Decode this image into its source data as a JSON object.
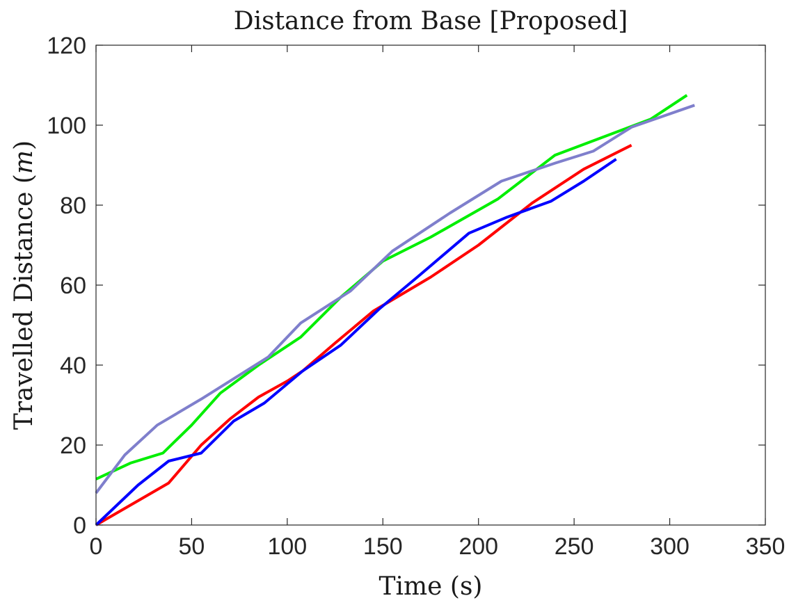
{
  "chart_data": {
    "type": "line",
    "title": "Distance from Base [Proposed]",
    "xlabel": "Time (s)",
    "ylabel_prefix": "Travelled Distance (",
    "ylabel_var": "m",
    "ylabel_suffix": ")",
    "xlim": [
      0,
      350
    ],
    "ylim": [
      0,
      120
    ],
    "xticks": [
      0,
      50,
      100,
      150,
      200,
      250,
      300,
      350
    ],
    "yticks": [
      0,
      20,
      40,
      60,
      80,
      100,
      120
    ],
    "grid": false,
    "legend": "none",
    "series": [
      {
        "color": "#ff0000",
        "points": [
          [
            0,
            0
          ],
          [
            38,
            10.5
          ],
          [
            55,
            20
          ],
          [
            70,
            26.5
          ],
          [
            85,
            32
          ],
          [
            100,
            36
          ],
          [
            108,
            38.5
          ],
          [
            125,
            45.5
          ],
          [
            145,
            53.5
          ],
          [
            175,
            62
          ],
          [
            200,
            70
          ],
          [
            228,
            80.5
          ],
          [
            255,
            89
          ],
          [
            280,
            95
          ]
        ]
      },
      {
        "color": "#0000ff",
        "points": [
          [
            0,
            0
          ],
          [
            22,
            10
          ],
          [
            38,
            16
          ],
          [
            55,
            18
          ],
          [
            72,
            26
          ],
          [
            88,
            30.5
          ],
          [
            108,
            38.5
          ],
          [
            128,
            45
          ],
          [
            148,
            54
          ],
          [
            168,
            62
          ],
          [
            195,
            73
          ],
          [
            215,
            77
          ],
          [
            238,
            81
          ],
          [
            255,
            86
          ],
          [
            272,
            91.5
          ]
        ]
      },
      {
        "color": "#00ee00",
        "points": [
          [
            0,
            11.5
          ],
          [
            18,
            15.5
          ],
          [
            35,
            18
          ],
          [
            50,
            25
          ],
          [
            65,
            33
          ],
          [
            85,
            40
          ],
          [
            107,
            47
          ],
          [
            128,
            57
          ],
          [
            150,
            66
          ],
          [
            175,
            72
          ],
          [
            210,
            81.5
          ],
          [
            240,
            92.5
          ],
          [
            290,
            101.5
          ],
          [
            309,
            107.5
          ]
        ]
      },
      {
        "color": "#7f7fcc",
        "points": [
          [
            0,
            8
          ],
          [
            15,
            17.5
          ],
          [
            32,
            25
          ],
          [
            55,
            31.5
          ],
          [
            75,
            37.5
          ],
          [
            90,
            42
          ],
          [
            107,
            50.5
          ],
          [
            133,
            58.5
          ],
          [
            155,
            68.5
          ],
          [
            185,
            78
          ],
          [
            212,
            86
          ],
          [
            240,
            90.5
          ],
          [
            260,
            93.5
          ],
          [
            280,
            99.5
          ],
          [
            313,
            105
          ]
        ]
      }
    ]
  }
}
